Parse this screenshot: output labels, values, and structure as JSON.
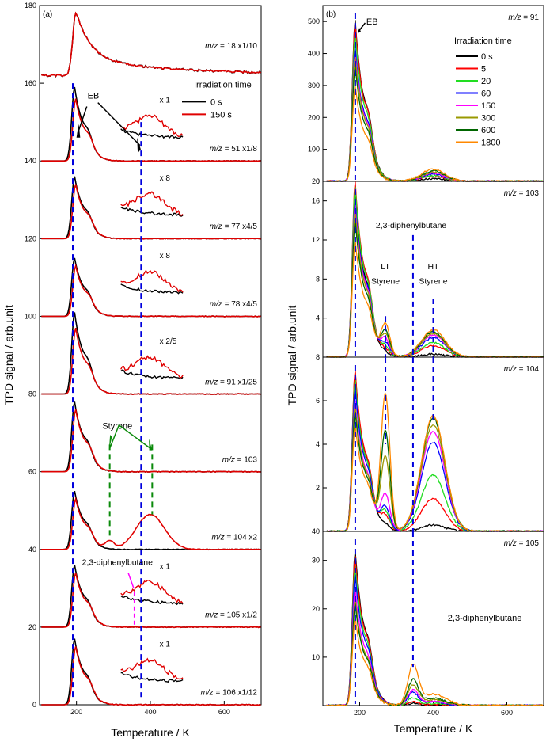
{
  "chart_data": [
    {
      "type": "line",
      "panel_label": "(a)",
      "xlabel": "Temperature / K",
      "ylabel": "TPD signal / arb.unit",
      "xlim": [
        100,
        700
      ],
      "ylim": [
        0,
        180
      ],
      "x_ticks": [
        200,
        400,
        600
      ],
      "y_ticks": [
        0,
        20,
        40,
        60,
        80,
        100,
        120,
        140,
        160,
        180
      ],
      "grid": false,
      "legend": {
        "title": "Irradiation time",
        "placement": "top-right",
        "entries": [
          {
            "label": "0 s",
            "color": "#000000"
          },
          {
            "label": "150 s",
            "color": "#e00000"
          }
        ]
      },
      "traces": [
        {
          "label": "m/z = 18 x1/10",
          "baseline": 162,
          "peak_x": 200,
          "peak_150s": 178,
          "peak_0s": 178,
          "tail_end_y": 165
        },
        {
          "label": "m/z = 51 x1/8",
          "baseline": 140,
          "peak_x": 195,
          "peak_0s": 159,
          "peak_150s": 156,
          "inset_factor": "x 1"
        },
        {
          "label": "m/z = 77 x4/5",
          "baseline": 120,
          "peak_x": 195,
          "peak_0s": 136,
          "peak_150s": 134,
          "inset_factor": "x 8"
        },
        {
          "label": "m/z = 78 x4/5",
          "baseline": 100,
          "peak_x": 195,
          "peak_0s": 115,
          "peak_150s": 113,
          "inset_factor": "x 8"
        },
        {
          "label": "m/z = 91 x1/25",
          "baseline": 80,
          "peak_x": 195,
          "peak_0s": 101,
          "peak_150s": 97,
          "inset_factor": "x 2/5"
        },
        {
          "label": "m/z = 103",
          "baseline": 60,
          "peak_x": 195,
          "peak_0s": 78,
          "peak_150s": 76
        },
        {
          "label": "m/z = 104 x2",
          "baseline": 40,
          "peak_x": 195,
          "peak_0s": 55,
          "peak_150s": 53,
          "second_peak": [
            400,
            49
          ]
        },
        {
          "label": "m/z = 105 x1/2",
          "baseline": 20,
          "peak_x": 195,
          "peak_0s": 36,
          "peak_150s": 34,
          "inset_factor": "x 1"
        },
        {
          "label": "m/z = 106 x1/12",
          "baseline": 0,
          "peak_x": 195,
          "peak_0s": 17,
          "peak_150s": 15,
          "inset_factor": "x 1"
        }
      ],
      "annotations": {
        "eb": "EB",
        "styrene": "Styrene",
        "dpb": "2,3-diphenylbutane"
      },
      "dashed_lines_x": [
        190,
        375
      ]
    },
    {
      "type": "line",
      "panel_label": "(b)",
      "xlabel": "Temperature / K",
      "ylabel": "TPD signal / arb.unit",
      "xlim": [
        100,
        700
      ],
      "x_ticks": [
        200,
        400,
        600
      ],
      "legend": {
        "title": "Irradiation time",
        "placement": "top-right",
        "entries": [
          {
            "label": "0 s",
            "color": "#000000"
          },
          {
            "label": "5",
            "color": "#ff0000"
          },
          {
            "label": "20",
            "color": "#22dd22"
          },
          {
            "label": "60",
            "color": "#0000ff"
          },
          {
            "label": "150",
            "color": "#ff00ff"
          },
          {
            "label": "300",
            "color": "#999900"
          },
          {
            "label": "600",
            "color": "#006600"
          },
          {
            "label": "1800",
            "color": "#ff8800"
          }
        ]
      },
      "subplots": [
        {
          "label": "m/z = 91",
          "ylim": [
            0,
            550
          ],
          "y_ticks": [
            0,
            100,
            200,
            300,
            400,
            500
          ],
          "main_peak_x": 188,
          "main_peak_values": [
            505,
            495,
            465,
            420,
            400,
            390,
            360,
            300
          ],
          "ht_peak_x": 400,
          "ht_peak_values": [
            8,
            15,
            18,
            22,
            25,
            28,
            32,
            38
          ],
          "annotations": {
            "eb": "EB"
          }
        },
        {
          "label": "m/z = 103",
          "ylim": [
            0,
            18
          ],
          "y_ticks": [
            0,
            4,
            8,
            12,
            16
          ],
          "main_peak_x": 188,
          "main_peak_values": [
            16.5,
            18,
            17.5,
            16,
            15.5,
            15,
            14,
            12
          ],
          "lt_peak_x": 270,
          "lt_peak_values": [
            0.2,
            0.5,
            0.8,
            1.2,
            1.6,
            2.0,
            2.4,
            3.2
          ],
          "ht_peak_x": 400,
          "ht_peak_values": [
            0.3,
            1.2,
            1.5,
            2.0,
            2.3,
            2.4,
            2.6,
            2.8
          ],
          "annotations": {
            "dpb": "2,3-diphenylbutane",
            "lt": [
              "LT",
              "Styrene"
            ],
            "ht": [
              "HT",
              "Styrene"
            ]
          }
        },
        {
          "label": "m/z = 104",
          "ylim": [
            0,
            8
          ],
          "y_ticks": [
            0,
            2,
            4,
            6
          ],
          "main_peak_x": 188,
          "main_peak_values": [
            7.3,
            7.4,
            7.0,
            6.6,
            6.0,
            5.8,
            5.5,
            4.9
          ],
          "lt_peak_x": 270,
          "lt_peak_values": [
            0.2,
            0.6,
            0.8,
            1.0,
            1.6,
            3.3,
            4.5,
            6.2
          ],
          "ht_peak_x": 400,
          "ht_peak_values": [
            0.3,
            1.5,
            2.6,
            4.1,
            4.6,
            4.9,
            5.2,
            5.3
          ]
        },
        {
          "label": "m/z = 105",
          "ylim": [
            0,
            36
          ],
          "y_ticks": [
            0,
            10,
            20,
            30
          ],
          "main_peak_x": 188,
          "main_peak_values": [
            32,
            31,
            29,
            27,
            24,
            22,
            21,
            18
          ],
          "dpb_peak_x": 345,
          "dpb_peak_values": [
            0.5,
            0.8,
            1.5,
            2.5,
            3.0,
            4.0,
            5.0,
            8.0
          ],
          "annotations": {
            "dpb": "2,3-diphenylbutane"
          }
        }
      ],
      "dashed_lines_x": [
        188,
        270,
        345,
        400
      ]
    }
  ]
}
